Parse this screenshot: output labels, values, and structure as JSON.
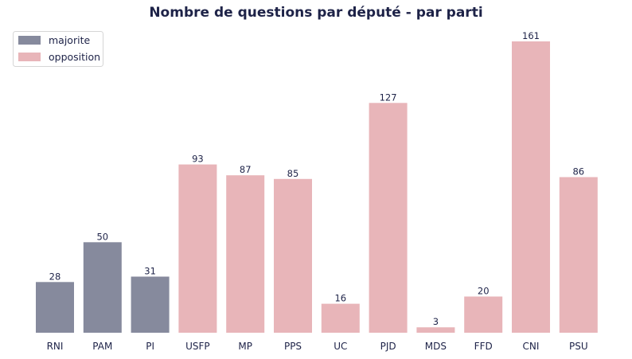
{
  "chart_data": {
    "type": "bar",
    "title": "Nombre de questions par député - par parti",
    "xlabel": "",
    "ylabel": "",
    "ylim": [
      0,
      165
    ],
    "grid": false,
    "legend_position": "top-left",
    "categories": [
      "RNI",
      "PAM",
      "PI",
      "USFP",
      "MP",
      "PPS",
      "UC",
      "PJD",
      "MDS",
      "FFD",
      "CNI",
      "PSU"
    ],
    "values": [
      28,
      50,
      31,
      93,
      87,
      85,
      16,
      127,
      3,
      20,
      161,
      86
    ],
    "groups": [
      "majorite",
      "majorite",
      "majorite",
      "opposition",
      "opposition",
      "opposition",
      "opposition",
      "opposition",
      "opposition",
      "opposition",
      "opposition",
      "opposition"
    ],
    "legend": [
      {
        "name": "majorite",
        "color": "#868a9d"
      },
      {
        "name": "opposition",
        "color": "#e8b5b9"
      }
    ]
  }
}
